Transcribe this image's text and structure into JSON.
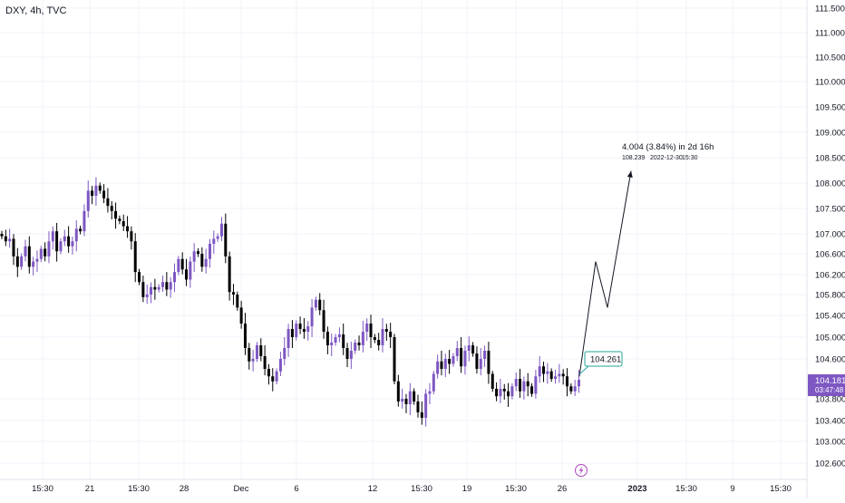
{
  "header": {
    "symbol": "DXY, 4h, TVC"
  },
  "colors": {
    "up": "#7e57c2",
    "down": "#000000",
    "price_tag": "#7e57c2",
    "callout_border": "#26a69a",
    "grid": "#f0f3fa"
  },
  "price_tag": {
    "price": "104.181",
    "countdown": "03:47:48"
  },
  "callout": {
    "price": "104.261"
  },
  "projection": {
    "change": "4.004 (3.84%) in 2d 16h",
    "target": "108.239",
    "date": "2022-12-30",
    "time": "15:30"
  },
  "bottom_icon": "lightning-icon",
  "chart_data": {
    "type": "candlestick",
    "yticks": [
      102.6,
      103.0,
      103.4,
      103.8,
      104.6,
      105.0,
      105.4,
      105.8,
      106.2,
      106.6,
      107.0,
      107.5,
      108.0,
      108.5,
      109.0,
      109.5,
      110.0,
      110.5,
      111.0,
      111.5
    ],
    "ytick_labels": [
      "102.600",
      "103.000",
      "103.400",
      "103.800",
      "104.600",
      "105.000",
      "105.400",
      "105.800",
      "106.200",
      "106.600",
      "107.000",
      "107.500",
      "108.000",
      "108.500",
      "109.000",
      "109.500",
      "110.000",
      "110.500",
      "111.000",
      "111.500"
    ],
    "xtick_labels": [
      "15:30",
      "21",
      "15:30",
      "28",
      "Dec",
      "6",
      "12",
      "15:30",
      "19",
      "15:30",
      "26",
      "2023",
      "15:30",
      "9",
      "15:30"
    ],
    "close": [
      106.95,
      106.85,
      106.9,
      106.55,
      106.35,
      106.55,
      106.75,
      106.35,
      106.45,
      106.5,
      106.7,
      106.55,
      106.85,
      107.05,
      106.65,
      106.85,
      106.95,
      106.75,
      106.85,
      107.1,
      107.05,
      107.45,
      107.85,
      107.75,
      107.95,
      107.85,
      107.7,
      107.55,
      107.45,
      107.3,
      107.25,
      107.15,
      107.05,
      106.85,
      106.25,
      106.05,
      105.75,
      105.8,
      105.95,
      105.9,
      105.95,
      106.05,
      105.9,
      106.05,
      106.25,
      106.5,
      106.3,
      106.1,
      106.45,
      106.65,
      106.6,
      106.35,
      106.5,
      106.8,
      106.9,
      106.95,
      107.2,
      106.55,
      105.85,
      105.8,
      105.55,
      105.25,
      104.8,
      104.55,
      104.6,
      104.85,
      104.65,
      104.4,
      104.25,
      104.15,
      104.35,
      104.6,
      104.8,
      105.15,
      105.0,
      105.25,
      105.15,
      105.1,
      105.2,
      105.55,
      105.7,
      105.5,
      105.1,
      104.85,
      104.9,
      105.0,
      105.05,
      104.8,
      104.6,
      104.75,
      104.9,
      104.85,
      105.1,
      105.25,
      105.0,
      104.95,
      104.85,
      105.15,
      105.1,
      105.0,
      104.15,
      103.75,
      103.8,
      103.7,
      103.95,
      103.75,
      103.55,
      103.45,
      103.9,
      103.95,
      104.3,
      104.55,
      104.4,
      104.6,
      104.5,
      104.65,
      104.8,
      104.45,
      104.75,
      104.85,
      104.7,
      104.4,
      104.6,
      104.75,
      104.3,
      104.0,
      103.85,
      104.0,
      103.95,
      103.85,
      104.05,
      104.2,
      103.95,
      104.15,
      104.05,
      103.9,
      104.25,
      104.45,
      104.3,
      104.35,
      104.2,
      104.25,
      104.3,
      104.25,
      104.05,
      103.95,
      104.05,
      104.181
    ]
  }
}
